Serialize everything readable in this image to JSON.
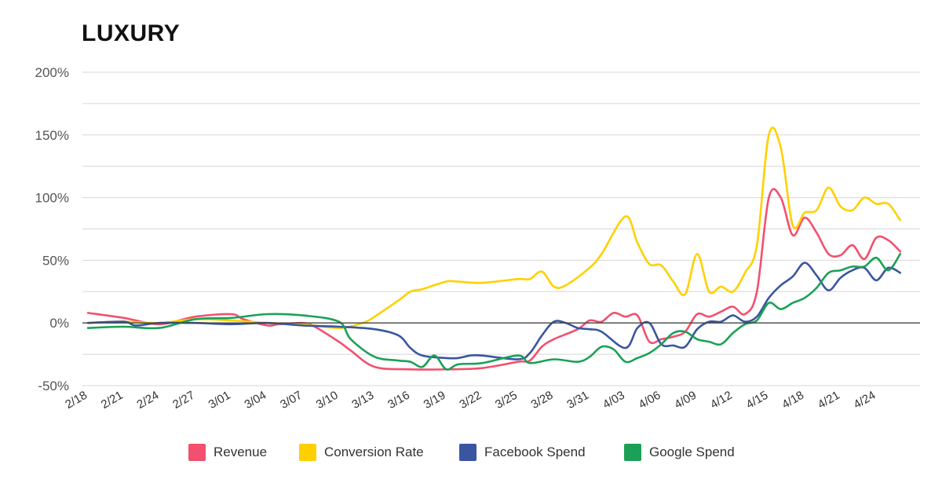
{
  "chart_data": {
    "type": "line",
    "title": "LUXURY",
    "xlabel": "",
    "ylabel": "",
    "ylim": [
      -50,
      200
    ],
    "yticks": [
      -50,
      0,
      50,
      100,
      150,
      200
    ],
    "ytick_labels": [
      "-50%",
      "0%",
      "50%",
      "100%",
      "150%",
      "200%"
    ],
    "x_start": "2/18",
    "x_end": "4/27",
    "xtick_labels": [
      "2/18",
      "2/21",
      "2/24",
      "2/27",
      "3/01",
      "3/04",
      "3/07",
      "3/10",
      "3/13",
      "3/16",
      "3/19",
      "3/22",
      "3/25",
      "3/28",
      "3/31",
      "4/03",
      "4/06",
      "4/09",
      "4/12",
      "4/15",
      "4/18",
      "4/21",
      "4/24"
    ],
    "grid": true,
    "legend_position": "bottom",
    "series": [
      {
        "name": "Revenue",
        "color": "#f2506e",
        "points": [
          [
            "2/18",
            8
          ],
          [
            "2/21",
            4
          ],
          [
            "2/24",
            -1
          ],
          [
            "2/27",
            5
          ],
          [
            "3/01",
            7
          ],
          [
            "3/02",
            3
          ],
          [
            "3/04",
            -2
          ],
          [
            "3/05",
            -1
          ],
          [
            "3/07",
            0
          ],
          [
            "3/08",
            -3
          ],
          [
            "3/10",
            -15
          ],
          [
            "3/11",
            -22
          ],
          [
            "3/13",
            -35
          ],
          [
            "3/16",
            -37
          ],
          [
            "3/19",
            -37
          ],
          [
            "3/22",
            -36
          ],
          [
            "3/25",
            -31
          ],
          [
            "3/26",
            -30
          ],
          [
            "3/27",
            -19
          ],
          [
            "3/28",
            -13
          ],
          [
            "3/30",
            -5
          ],
          [
            "3/31",
            2
          ],
          [
            "4/01",
            1
          ],
          [
            "4/02",
            8
          ],
          [
            "4/03",
            5
          ],
          [
            "4/04",
            6
          ],
          [
            "4/05",
            -15
          ],
          [
            "4/06",
            -13
          ],
          [
            "4/07",
            -11
          ],
          [
            "4/08",
            -7
          ],
          [
            "4/09",
            7
          ],
          [
            "4/10",
            5
          ],
          [
            "4/11",
            9
          ],
          [
            "4/12",
            13
          ],
          [
            "4/13",
            7
          ],
          [
            "4/14",
            25
          ],
          [
            "4/15",
            100
          ],
          [
            "4/16",
            100
          ],
          [
            "4/17",
            70
          ],
          [
            "4/18",
            84
          ],
          [
            "4/19",
            72
          ],
          [
            "4/20",
            55
          ],
          [
            "4/21",
            54
          ],
          [
            "4/22",
            62
          ],
          [
            "4/23",
            51
          ],
          [
            "4/24",
            68
          ],
          [
            "4/25",
            66
          ],
          [
            "4/26",
            57
          ]
        ]
      },
      {
        "name": "Conversion Rate",
        "color": "#ffd000",
        "points": [
          [
            "2/18",
            0
          ],
          [
            "2/21",
            1
          ],
          [
            "2/24",
            0
          ],
          [
            "2/27",
            3
          ],
          [
            "3/01",
            2
          ],
          [
            "3/04",
            0
          ],
          [
            "3/07",
            -1
          ],
          [
            "3/10",
            -4
          ],
          [
            "3/12",
            0
          ],
          [
            "3/13",
            5
          ],
          [
            "3/15",
            18
          ],
          [
            "3/16",
            25
          ],
          [
            "3/17",
            27
          ],
          [
            "3/19",
            33
          ],
          [
            "3/20",
            33
          ],
          [
            "3/22",
            32
          ],
          [
            "3/25",
            35
          ],
          [
            "3/26",
            35
          ],
          [
            "3/27",
            41
          ],
          [
            "3/28",
            29
          ],
          [
            "3/29",
            30
          ],
          [
            "3/31",
            44
          ],
          [
            "4/01",
            55
          ],
          [
            "4/03",
            85
          ],
          [
            "4/04",
            64
          ],
          [
            "4/05",
            47
          ],
          [
            "4/06",
            46
          ],
          [
            "4/07",
            33
          ],
          [
            "4/08",
            23
          ],
          [
            "4/09",
            55
          ],
          [
            "4/10",
            25
          ],
          [
            "4/11",
            29
          ],
          [
            "4/12",
            25
          ],
          [
            "4/13",
            40
          ],
          [
            "4/14",
            62
          ],
          [
            "4/15",
            150
          ],
          [
            "4/16",
            140
          ],
          [
            "4/17",
            78
          ],
          [
            "4/18",
            88
          ],
          [
            "4/19",
            90
          ],
          [
            "4/20",
            108
          ],
          [
            "4/21",
            93
          ],
          [
            "4/22",
            90
          ],
          [
            "4/23",
            100
          ],
          [
            "4/24",
            95
          ],
          [
            "4/25",
            95
          ],
          [
            "4/26",
            82
          ]
        ]
      },
      {
        "name": "Facebook Spend",
        "color": "#3a56a0",
        "points": [
          [
            "2/18",
            0
          ],
          [
            "2/21",
            1
          ],
          [
            "2/22",
            -2
          ],
          [
            "2/24",
            0
          ],
          [
            "2/27",
            0
          ],
          [
            "3/01",
            -1
          ],
          [
            "3/04",
            0
          ],
          [
            "3/07",
            -2
          ],
          [
            "3/10",
            -3
          ],
          [
            "3/13",
            -5
          ],
          [
            "3/15",
            -10
          ],
          [
            "3/16",
            -20
          ],
          [
            "3/17",
            -26
          ],
          [
            "3/19",
            -28
          ],
          [
            "3/20",
            -28
          ],
          [
            "3/21",
            -26
          ],
          [
            "3/22",
            -26
          ],
          [
            "3/25",
            -29
          ],
          [
            "3/26",
            -24
          ],
          [
            "3/27",
            -10
          ],
          [
            "3/28",
            1
          ],
          [
            "3/29",
            0
          ],
          [
            "3/30",
            -4
          ],
          [
            "3/31",
            -5
          ],
          [
            "4/01",
            -7
          ],
          [
            "4/03",
            -20
          ],
          [
            "4/04",
            -4
          ],
          [
            "4/05",
            0
          ],
          [
            "4/06",
            -17
          ],
          [
            "4/07",
            -18
          ],
          [
            "4/08",
            -19
          ],
          [
            "4/09",
            -5
          ],
          [
            "4/10",
            1
          ],
          [
            "4/11",
            1
          ],
          [
            "4/12",
            6
          ],
          [
            "4/13",
            1
          ],
          [
            "4/14",
            5
          ],
          [
            "4/15",
            20
          ],
          [
            "4/16",
            30
          ],
          [
            "4/17",
            37
          ],
          [
            "4/18",
            48
          ],
          [
            "4/19",
            38
          ],
          [
            "4/20",
            26
          ],
          [
            "4/21",
            36
          ],
          [
            "4/22",
            42
          ],
          [
            "4/23",
            44
          ],
          [
            "4/24",
            34
          ],
          [
            "4/25",
            44
          ],
          [
            "4/26",
            40
          ]
        ]
      },
      {
        "name": "Google Spend",
        "color": "#1ba157",
        "points": [
          [
            "2/18",
            -4
          ],
          [
            "2/21",
            -3
          ],
          [
            "2/24",
            -4
          ],
          [
            "2/27",
            3
          ],
          [
            "3/01",
            4
          ],
          [
            "3/04",
            7
          ],
          [
            "3/07",
            6
          ],
          [
            "3/10",
            1
          ],
          [
            "3/11",
            -13
          ],
          [
            "3/13",
            -27
          ],
          [
            "3/15",
            -30
          ],
          [
            "3/16",
            -31
          ],
          [
            "3/17",
            -35
          ],
          [
            "3/18",
            -26
          ],
          [
            "3/19",
            -37
          ],
          [
            "3/20",
            -33
          ],
          [
            "3/22",
            -32
          ],
          [
            "3/25",
            -26
          ],
          [
            "3/26",
            -32
          ],
          [
            "3/28",
            -29
          ],
          [
            "3/30",
            -31
          ],
          [
            "3/31",
            -27
          ],
          [
            "4/01",
            -19
          ],
          [
            "4/02",
            -21
          ],
          [
            "4/03",
            -31
          ],
          [
            "4/04",
            -28
          ],
          [
            "4/05",
            -24
          ],
          [
            "4/06",
            -17
          ],
          [
            "4/07",
            -8
          ],
          [
            "4/08",
            -7
          ],
          [
            "4/09",
            -13
          ],
          [
            "4/10",
            -15
          ],
          [
            "4/11",
            -17
          ],
          [
            "4/12",
            -8
          ],
          [
            "4/13",
            -1
          ],
          [
            "4/14",
            2
          ],
          [
            "4/15",
            16
          ],
          [
            "4/16",
            11
          ],
          [
            "4/17",
            16
          ],
          [
            "4/18",
            20
          ],
          [
            "4/19",
            28
          ],
          [
            "4/20",
            40
          ],
          [
            "4/21",
            42
          ],
          [
            "4/22",
            45
          ],
          [
            "4/23",
            45
          ],
          [
            "4/24",
            52
          ],
          [
            "4/25",
            42
          ],
          [
            "4/26",
            55
          ]
        ]
      }
    ]
  }
}
